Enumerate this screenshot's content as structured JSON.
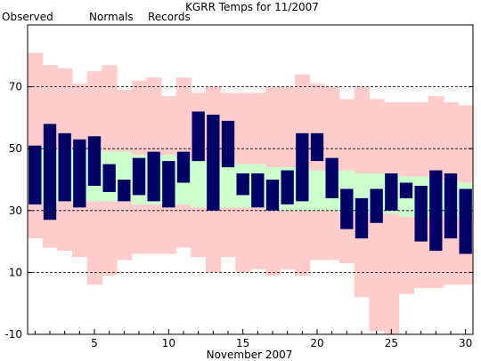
{
  "chart_data": {
    "type": "bar",
    "title": "KGRR Temps for 11/2007",
    "xlabel": "November 2007",
    "ylabel": "",
    "xlim": [
      0.5,
      30.5
    ],
    "ylim": [
      -10,
      90
    ],
    "yticks": [
      -10,
      10,
      30,
      50,
      70
    ],
    "xticks": [
      5,
      10,
      15,
      20,
      25,
      30
    ],
    "grid": "dashed horizontal at y ticks",
    "legend_position": "top-left",
    "legend": [
      {
        "name": "Observed",
        "color": "#000066"
      },
      {
        "name": "Normals",
        "color": "#007700"
      },
      {
        "name": "Records",
        "color": "#e79bc5"
      }
    ],
    "days": [
      1,
      2,
      3,
      4,
      5,
      6,
      7,
      8,
      9,
      10,
      11,
      12,
      13,
      14,
      15,
      16,
      17,
      18,
      19,
      20,
      21,
      22,
      23,
      24,
      25,
      26,
      27,
      28,
      29,
      30
    ],
    "series": [
      {
        "name": "Records",
        "color": "#ffcccc",
        "high": [
          81,
          77,
          76,
          71,
          75,
          77,
          69,
          72,
          73,
          67,
          73,
          68,
          70,
          68,
          68,
          68,
          70,
          70,
          74,
          71,
          70,
          66,
          70,
          66,
          65,
          65,
          65,
          67,
          65,
          64
        ],
        "low": [
          21,
          18,
          17,
          15,
          6,
          9,
          14,
          16,
          16,
          16,
          18,
          15,
          10,
          15,
          10,
          11,
          9,
          11,
          9,
          14,
          14,
          13,
          2,
          -9,
          -10,
          3,
          5,
          5,
          6,
          6
        ]
      },
      {
        "name": "Normals",
        "color": "#ccffcc",
        "high": [
          51,
          50,
          50,
          50,
          50,
          49,
          49,
          48,
          48,
          48,
          47,
          46,
          46,
          46,
          45,
          45,
          44,
          44,
          44,
          43,
          43,
          43,
          42,
          42,
          42,
          41,
          41,
          40,
          40,
          39
        ],
        "low": [
          32,
          32,
          33,
          33,
          33,
          33,
          33,
          32,
          32,
          32,
          32,
          31,
          31,
          31,
          31,
          31,
          30,
          30,
          30,
          30,
          30,
          29,
          29,
          29,
          29,
          28,
          28,
          28,
          28,
          28
        ]
      },
      {
        "name": "Observed",
        "color": "#000066",
        "high": [
          51,
          58,
          55,
          53,
          54,
          45,
          40,
          47,
          49,
          46,
          49,
          62,
          61,
          59,
          42,
          42,
          40,
          43,
          55,
          55,
          47,
          37,
          34,
          37,
          42,
          39,
          38,
          43,
          42,
          37
        ],
        "low": [
          32,
          27,
          33,
          31,
          38,
          36,
          33,
          35,
          33,
          31,
          39,
          46,
          30,
          44,
          35,
          31,
          30,
          32,
          33,
          46,
          34,
          24,
          21,
          26,
          30,
          34,
          20,
          17,
          21,
          16
        ]
      }
    ]
  }
}
